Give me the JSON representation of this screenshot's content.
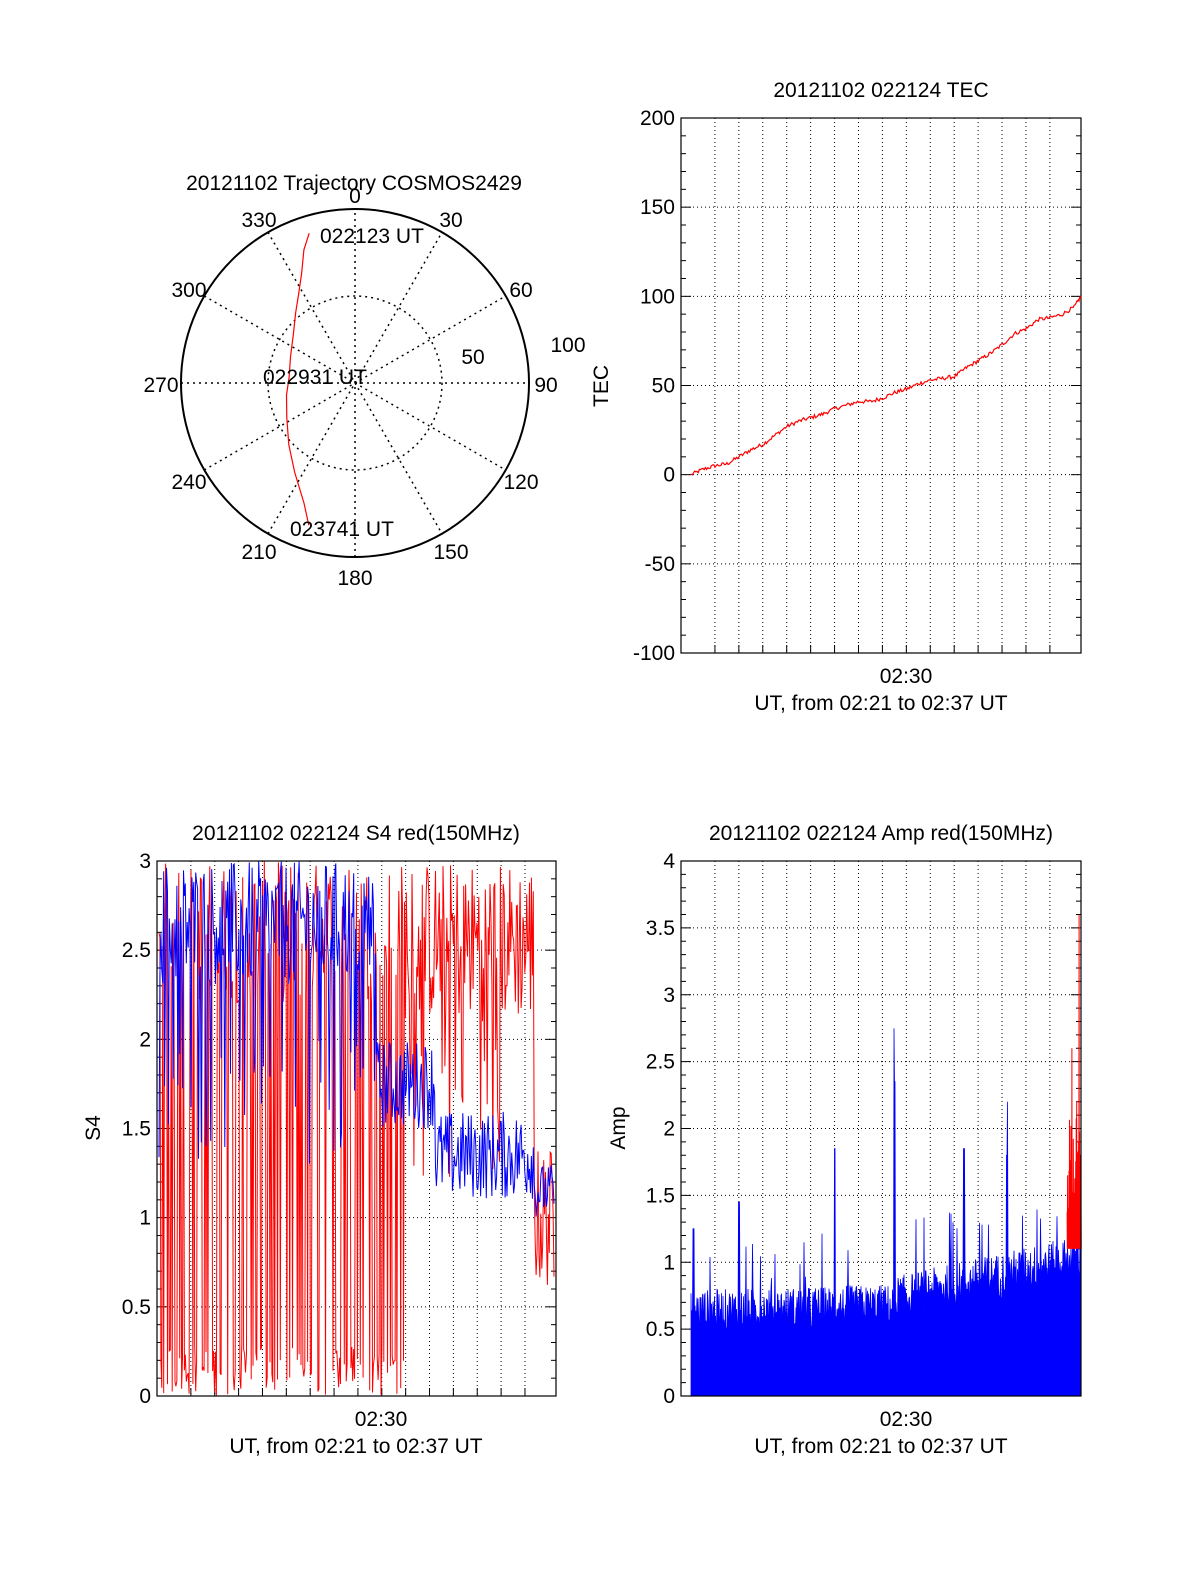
{
  "colors": {
    "red": "#ff0000",
    "blue": "#0000ff",
    "axis": "#000000",
    "grid": "#000000"
  },
  "chart_data": [
    {
      "type": "polar",
      "title": "20121102 Trajectory COSMOS2429",
      "angle_labels": [
        "0",
        "30",
        "60",
        "90",
        "120",
        "150",
        "180",
        "210",
        "240",
        "270",
        "300",
        "330"
      ],
      "radial_labels": [
        "50",
        "100"
      ],
      "rlim": [
        0,
        100
      ],
      "grid": true,
      "series": [
        {
          "color": "#ff0000",
          "points": [
            [
              -17,
              90
            ],
            [
              -21,
              82
            ],
            [
              -26,
              70
            ],
            [
              -32,
              61
            ],
            [
              -40,
              53
            ],
            [
              -52,
              45
            ],
            [
              -68,
              40
            ],
            [
              -85,
              38
            ],
            [
              -100,
              40
            ],
            [
              -117,
              44
            ],
            [
              -133,
              52
            ],
            [
              -146,
              62
            ],
            [
              -157,
              75
            ],
            [
              -162,
              86
            ]
          ]
        }
      ],
      "annotations": [
        {
          "text": "022123 UT",
          "r": 90,
          "theta": -17
        },
        {
          "text": "022931 UT",
          "r": 0,
          "theta": 0
        },
        {
          "text": "023741 UT",
          "r": 86,
          "theta": -162
        }
      ]
    },
    {
      "type": "line",
      "title": "20121102 022124 TEC",
      "xlabel": "UT, from 02:21 to 02:37 UT",
      "ylabel": "TEC",
      "xlim": [
        "02:21:24",
        "02:37:41"
      ],
      "ylim": [
        -100,
        200
      ],
      "yticks": [
        "-100",
        "-50",
        "0",
        "50",
        "100",
        "150",
        "200"
      ],
      "xticks": [
        {
          "label": "02:30",
          "value": "02:30:00"
        }
      ],
      "grid": true,
      "series": [
        {
          "color": "#ff0000",
          "x_minutes": [
            0,
            0.5,
            1,
            1.5,
            2,
            2.5,
            3,
            3.5,
            4,
            4.5,
            5,
            5.5,
            6,
            6.5,
            7,
            7.5,
            8,
            8.5,
            9,
            9.5,
            10,
            10.5,
            11,
            11.5,
            12,
            12.5,
            13,
            13.5,
            14,
            14.5,
            15,
            15.5,
            16,
            16.28
          ],
          "y": [
            0,
            3,
            5,
            6,
            10,
            14,
            17,
            22,
            27,
            30,
            32,
            34,
            37,
            39,
            41,
            41,
            43,
            46,
            48,
            51,
            53,
            54,
            55,
            60,
            64,
            68,
            73,
            79,
            82,
            87,
            88,
            90,
            94,
            100
          ]
        }
      ]
    },
    {
      "type": "line",
      "title": "20121102 022124 S4 red(150MHz)",
      "xlabel": "UT, from 02:21 to 02:37 UT",
      "ylabel": "S4",
      "xlim": [
        "02:21:24",
        "02:37:41"
      ],
      "ylim": [
        0,
        3
      ],
      "yticks": [
        "0",
        "0.5",
        "1",
        "1.5",
        "2",
        "2.5",
        "3"
      ],
      "xticks": [
        {
          "label": "02:30",
          "value": "02:30:00"
        }
      ],
      "grid": true,
      "series": [
        {
          "color": "#ff0000",
          "description_values": "noisy, 0–3 until ~02:31, then ~2–3, dropping to ~0.7 near end"
        },
        {
          "color": "#0000ff",
          "description_values": "noisy 2–3 until ~02:29, decaying to ~1.1–1.5 by end"
        }
      ]
    },
    {
      "type": "bar",
      "title": "20121102 022124 Amp red(150MHz)",
      "xlabel": "UT, from 02:21 to 02:37 UT",
      "ylabel": "Amp",
      "xlim": [
        "02:21:24",
        "02:37:41"
      ],
      "ylim": [
        0,
        4
      ],
      "yticks": [
        "0",
        "0.5",
        "1",
        "1.5",
        "2",
        "2.5",
        "3",
        "3.5",
        "4"
      ],
      "xticks": [
        {
          "label": "02:30",
          "value": "02:30:00"
        }
      ],
      "grid": true,
      "series": [
        {
          "color": "#0000ff",
          "baseline": 0.55,
          "baseline_end": 0.95,
          "peaks": [
            [
              0.1,
              1.25
            ],
            [
              2.0,
              1.45
            ],
            [
              6.0,
              1.85
            ],
            [
              8.5,
              2.35
            ],
            [
              11.4,
              1.85
            ],
            [
              13.2,
              1.8
            ]
          ]
        },
        {
          "color": "#ff0000",
          "end_peaks": [
            [
              15.9,
              2.6
            ],
            [
              16.1,
              2.2
            ],
            [
              16.2,
              3.6
            ]
          ]
        }
      ]
    }
  ]
}
